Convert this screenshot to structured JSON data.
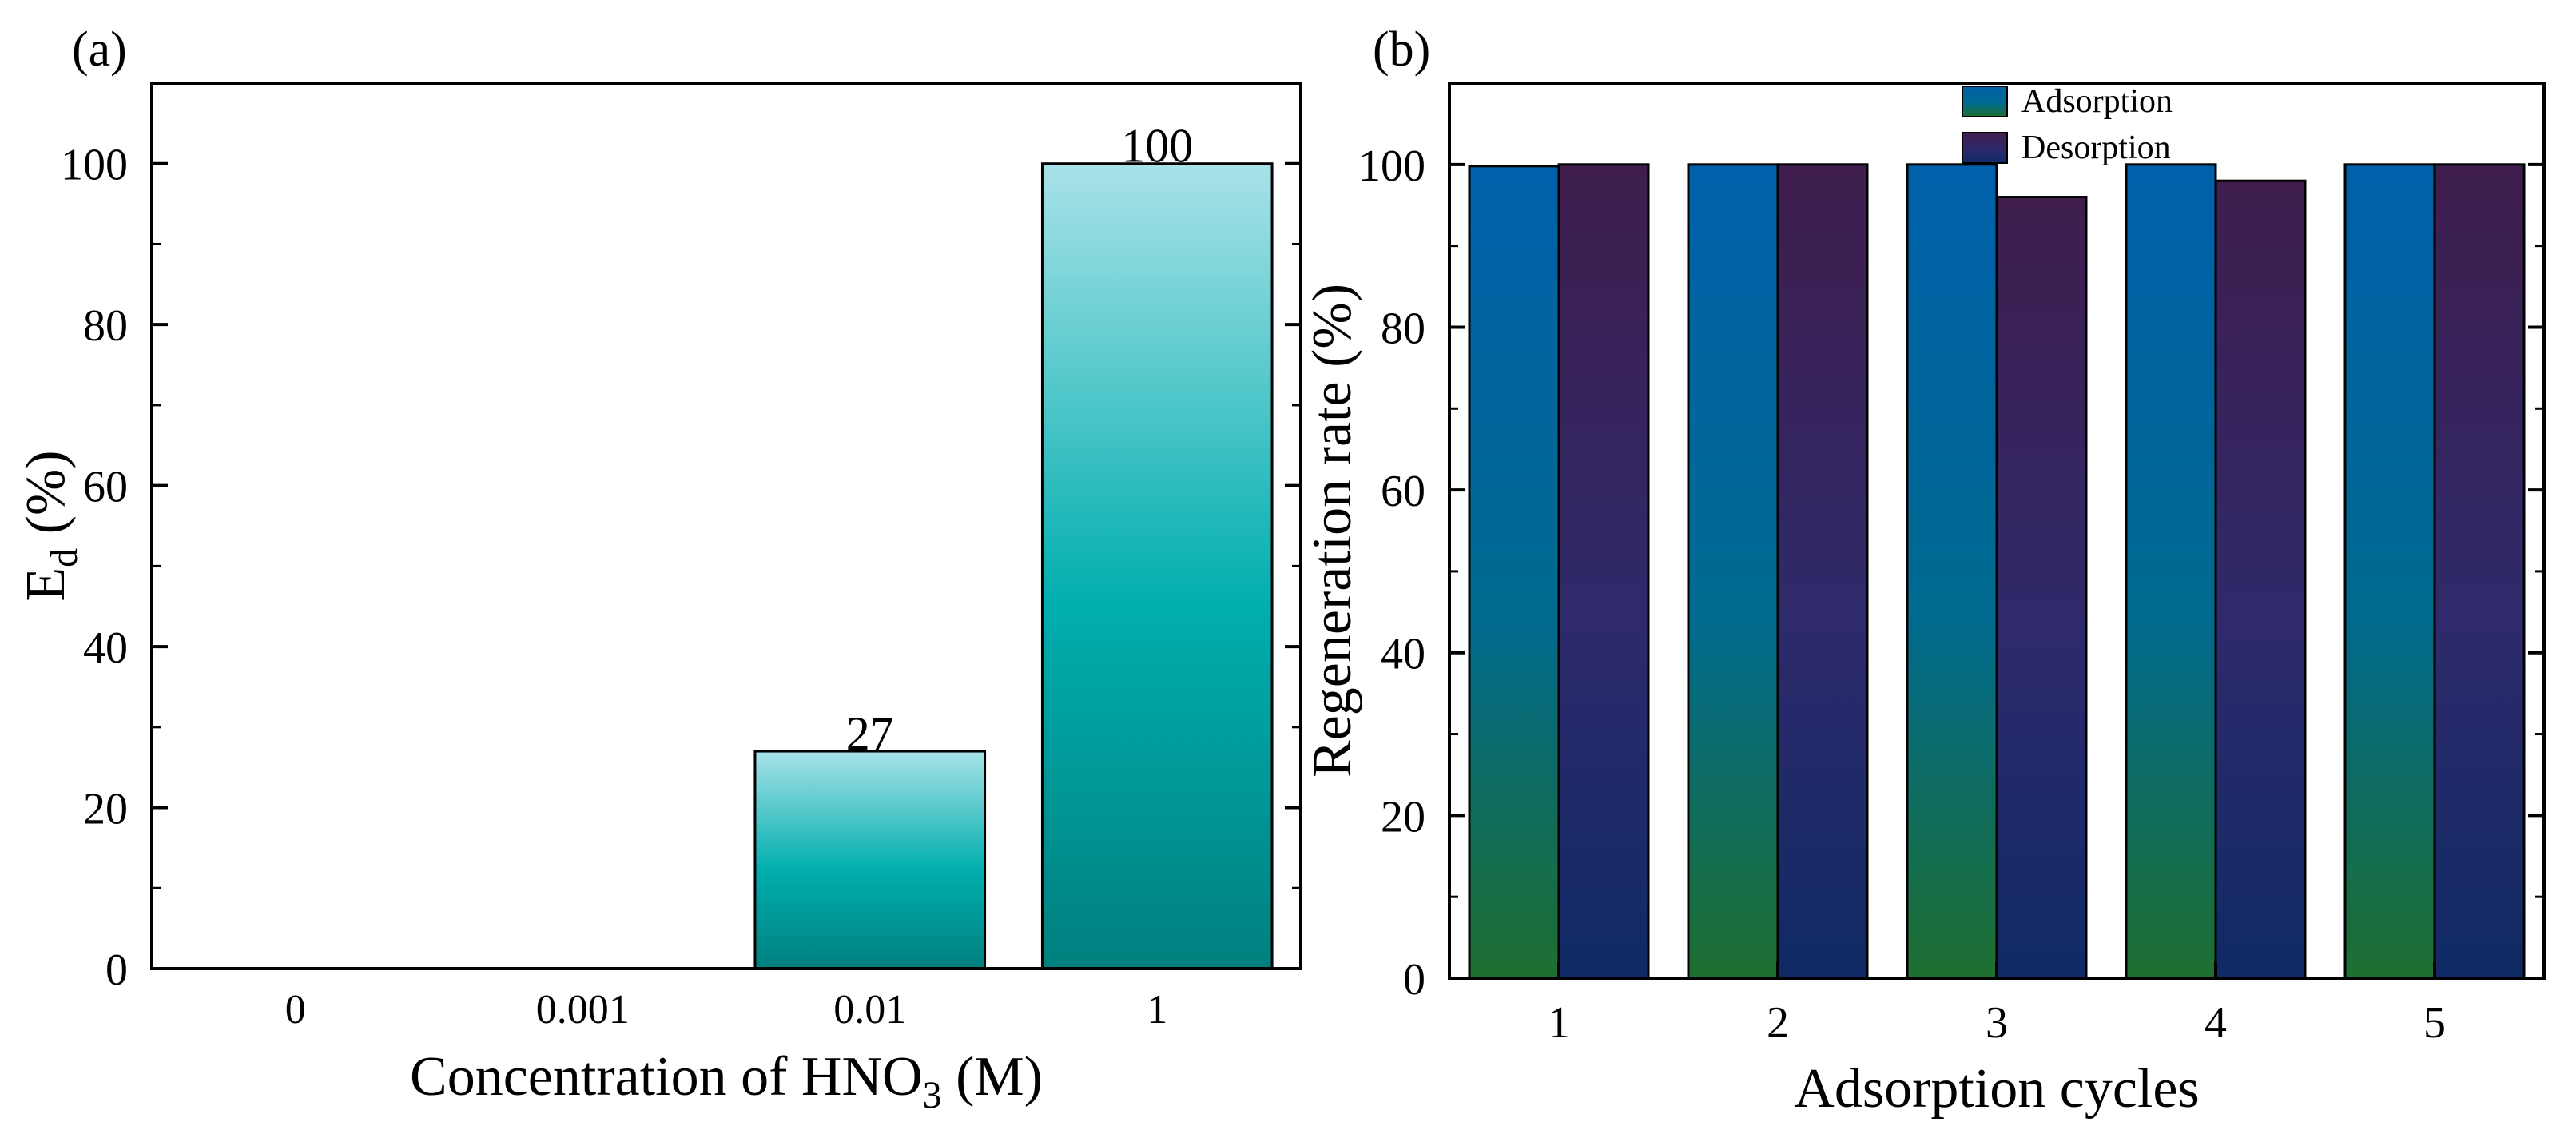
{
  "chart_data": [
    {
      "panel_label": "(a)",
      "type": "bar",
      "categories": [
        "0",
        "0.001",
        "0.01",
        "1"
      ],
      "values": [
        0,
        0,
        27,
        100
      ],
      "data_labels": [
        "",
        "",
        "27",
        "100"
      ],
      "title": "",
      "xlabel": {
        "main": "Concentration of HNO",
        "sub": "3",
        "tail": " (M)"
      },
      "ylabel": {
        "main": "E",
        "sub": "d",
        "tail": " (%)"
      },
      "ylim": [
        0,
        110
      ],
      "yticks": [
        0,
        20,
        40,
        60,
        80,
        100
      ],
      "bar_gradient": {
        "top": "#a8e2e8",
        "mid": "#00aeae",
        "bottom": "#00807f"
      }
    },
    {
      "panel_label": "(b)",
      "type": "bar",
      "categories": [
        "1",
        "2",
        "3",
        "4",
        "5"
      ],
      "series": [
        {
          "name": "Adsorption",
          "values": [
            99.8,
            100,
            100,
            100,
            100
          ],
          "gradient": {
            "top": "#0060aa",
            "mid": "#006a90",
            "bottom": "#1e6f30"
          }
        },
        {
          "name": "Desorption",
          "values": [
            100,
            100,
            96,
            98,
            100
          ],
          "gradient": {
            "top": "#3f1d4d",
            "mid": "#2f2a6b",
            "bottom": "#0f2a66"
          }
        }
      ],
      "title": "",
      "xlabel": "Adsorption cycles",
      "ylabel": "Regeneration rate (%)",
      "ylim": [
        0,
        110
      ],
      "yticks": [
        0,
        20,
        40,
        60,
        80,
        100
      ],
      "legend_position": "top-center"
    }
  ]
}
